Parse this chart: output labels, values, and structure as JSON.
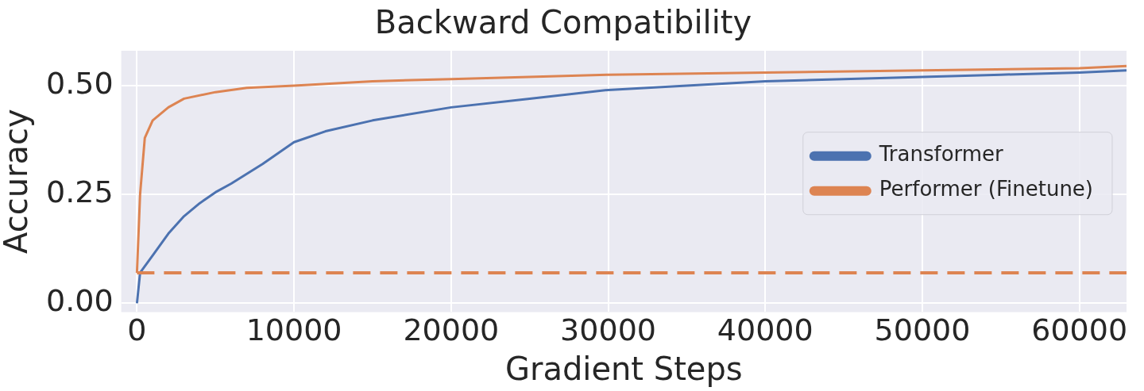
{
  "chart_data": {
    "type": "line",
    "title": "Backward Compatibility",
    "xlabel": "Gradient Steps",
    "ylabel": "Accuracy",
    "xlim": [
      -1000,
      63000
    ],
    "xticks": [
      0,
      10000,
      20000,
      30000,
      40000,
      50000,
      60000
    ],
    "ylim": [
      -0.02,
      0.58
    ],
    "yticks": [
      {
        "value": 0,
        "label": "0.00"
      },
      {
        "value": 0.25,
        "label": "0.25"
      },
      {
        "value": 0.5,
        "label": "0.50"
      }
    ],
    "grid": true,
    "legend": "right",
    "marker": "none",
    "line_style": "solid",
    "ref_lines": [
      {
        "axis": "y",
        "value": 0.07,
        "color": "#dd8452",
        "line_style": "dashed"
      }
    ],
    "series": [
      {
        "name": "Transformer",
        "color": "#4c72b0",
        "x": [
          0,
          200,
          1000,
          2000,
          3000,
          4000,
          5000,
          6000,
          8000,
          10000,
          12000,
          15000,
          20000,
          25000,
          30000,
          35000,
          40000,
          45000,
          50000,
          55000,
          60000,
          63000
        ],
        "values": [
          0.0,
          0.07,
          0.11,
          0.16,
          0.2,
          0.23,
          0.255,
          0.275,
          0.32,
          0.37,
          0.395,
          0.42,
          0.45,
          0.47,
          0.49,
          0.5,
          0.51,
          0.515,
          0.52,
          0.525,
          0.53,
          0.535
        ]
      },
      {
        "name": "Performer (Finetune)",
        "color": "#dd8452",
        "x": [
          0,
          200,
          500,
          1000,
          2000,
          3000,
          5000,
          7000,
          10000,
          15000,
          20000,
          30000,
          40000,
          50000,
          60000,
          63000
        ],
        "values": [
          0.07,
          0.25,
          0.38,
          0.42,
          0.45,
          0.47,
          0.485,
          0.495,
          0.5,
          0.51,
          0.515,
          0.525,
          0.53,
          0.535,
          0.54,
          0.545
        ]
      }
    ]
  }
}
